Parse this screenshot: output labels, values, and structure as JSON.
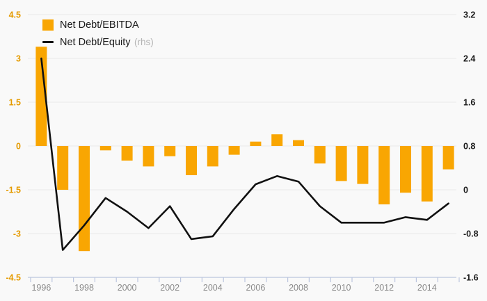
{
  "legend": {
    "bar_label": "Net Debt/EBITDA",
    "line_label": "Net Debt/Equity",
    "line_suffix": "(rhs)"
  },
  "colors": {
    "bar": "#F9A602",
    "line": "#111111",
    "left_axis_label": "#E59B00",
    "right_axis_label": "#1a1a1a",
    "x_axis_label": "#8a8a8a",
    "gridline": "#e9e9e9",
    "axis_line": "#bcc6de",
    "background": "#f9f9f9",
    "rhs_suffix": "#b4b4b4"
  },
  "chart_data": {
    "type": "bar",
    "subtype": "combo-bar-line",
    "title": "",
    "categories": [
      1996,
      1997,
      1998,
      1999,
      2000,
      2001,
      2002,
      2003,
      2004,
      2005,
      2006,
      2007,
      2008,
      2009,
      2010,
      2011,
      2012,
      2013,
      2014,
      2015
    ],
    "series": [
      {
        "name": "Net Debt/EBITDA",
        "type": "bar",
        "axis": "left",
        "color": "#F9A602",
        "values": [
          3.4,
          -1.5,
          -3.6,
          -0.15,
          -0.5,
          -0.7,
          -0.35,
          -1.0,
          -0.7,
          -0.3,
          0.15,
          0.4,
          0.2,
          -0.6,
          -1.2,
          -1.3,
          -2.0,
          -1.6,
          -1.9,
          -0.8
        ]
      },
      {
        "name": "Net Debt/Equity (rhs)",
        "type": "line",
        "axis": "right",
        "color": "#111111",
        "values": [
          2.4,
          -1.1,
          -0.65,
          -0.15,
          -0.4,
          -0.7,
          -0.3,
          -0.9,
          -0.85,
          -0.35,
          0.1,
          0.25,
          0.15,
          -0.3,
          -0.6,
          -0.6,
          -0.6,
          -0.5,
          -0.55,
          -0.25
        ]
      }
    ],
    "left_axis": {
      "min": -4.5,
      "max": 4.5,
      "tick_labels": [
        "4.5",
        "3",
        "1.5",
        "0",
        "-1.5",
        "-3",
        "-4.5"
      ]
    },
    "right_axis": {
      "min": -1.6,
      "max": 3.2,
      "tick_labels": [
        "3.2",
        "2.4",
        "1.6",
        "0.8",
        "0",
        "-0.8",
        "-1.6"
      ]
    },
    "x_axis": {
      "labels": [
        "1996",
        "1998",
        "2000",
        "2002",
        "2004",
        "2006",
        "2008",
        "2010",
        "2012",
        "2014"
      ],
      "label_years": [
        1996,
        1998,
        2000,
        2002,
        2004,
        2006,
        2008,
        2010,
        2012,
        2014
      ]
    },
    "grid": true,
    "legend_position": "top-left"
  }
}
